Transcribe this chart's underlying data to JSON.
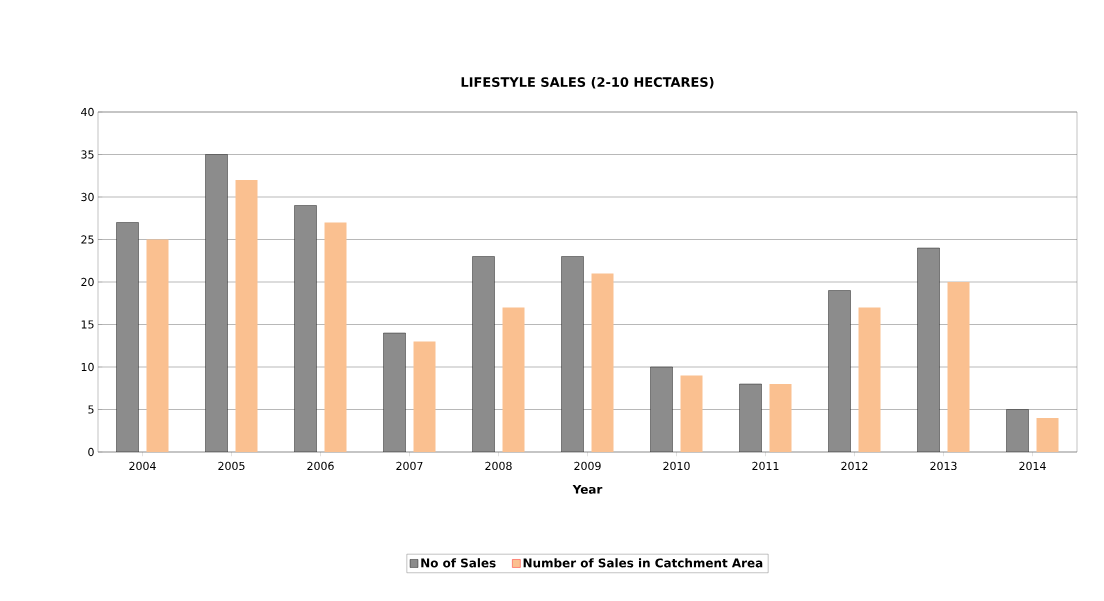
{
  "chart_data": {
    "type": "bar",
    "title": "LIFESTYLE SALES (2-10 HECTARES)",
    "xlabel": "Year",
    "categories": [
      "2004",
      "2005",
      "2006",
      "2007",
      "2008",
      "2009",
      "2010",
      "2011",
      "2012",
      "2013",
      "2014"
    ],
    "series": [
      {
        "name": "No of Sales",
        "color": "#8c8c8c",
        "values": [
          27,
          35,
          29,
          14,
          23,
          23,
          10,
          8,
          19,
          24,
          5
        ]
      },
      {
        "name": "Number of Sales in Catchment Area",
        "color": "#fac090",
        "values": [
          25,
          32,
          27,
          13,
          17,
          21,
          9,
          8,
          17,
          20,
          4
        ]
      }
    ],
    "ylim": [
      0,
      40
    ],
    "yticks": [
      0,
      5,
      10,
      15,
      20,
      25,
      30,
      35,
      40
    ],
    "grid": "y",
    "legend": "bottom"
  }
}
